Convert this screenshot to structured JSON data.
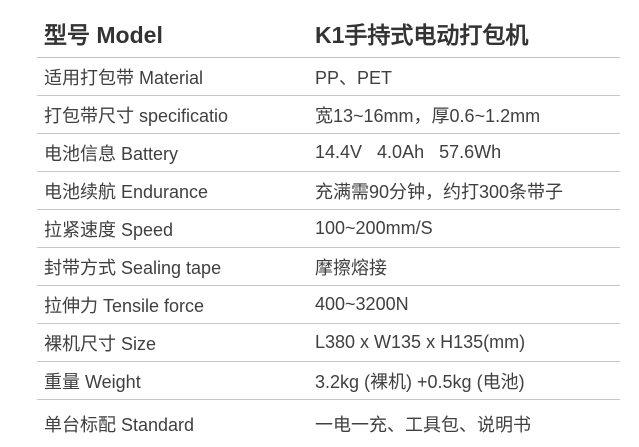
{
  "product_spec_table": {
    "header": {
      "label": "型号 Model",
      "value": "K1手持式电动打包机"
    },
    "rows": [
      {
        "label": "适用打包带 Material",
        "value": "PP、PET"
      },
      {
        "label": "打包带尺寸 specificatio",
        "value": "宽13~16mm，厚0.6~1.2mm"
      },
      {
        "label": "电池信息 Battery",
        "value": "14.4V   4.0Ah   57.6Wh"
      },
      {
        "label": "电池续航 Endurance",
        "value": "充满需90分钟，约打300条带子"
      },
      {
        "label": "拉紧速度 Speed",
        "value": "100~200mm/S"
      },
      {
        "label": "封带方式 Sealing tape",
        "value": "摩擦熔接"
      },
      {
        "label": "拉伸力 Tensile force",
        "value": "400~3200N"
      },
      {
        "label": "裸机尺寸 Size",
        "value": "L380 x W135 x H135(mm)"
      },
      {
        "label": "重量 Weight",
        "value": "3.2kg (裸机) +0.5kg (电池)"
      },
      {
        "label": "单台标配 Standard",
        "value": "一电一充、工具包、说明书"
      }
    ],
    "colors": {
      "header_text": "#333333",
      "row_text": "#404040",
      "divider": "#c6c6c6",
      "background": "#ffffff"
    }
  }
}
